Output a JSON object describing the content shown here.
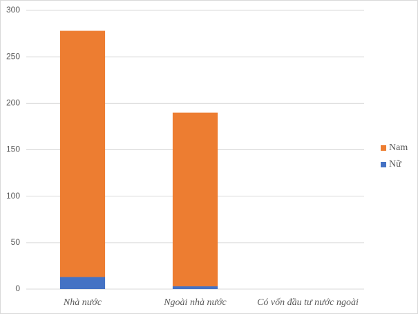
{
  "chart_data": {
    "type": "stacked-bar",
    "categories": [
      "Nhà nước",
      "Ngoài nhà nước",
      "Có vốn đầu tư nước ngoài"
    ],
    "series": [
      {
        "name": "Nữ",
        "color": "#4472c4",
        "values": [
          13,
          3,
          0
        ]
      },
      {
        "name": "Nam",
        "color": "#ed7d31",
        "values": [
          265,
          187,
          0
        ]
      }
    ],
    "ylim": [
      0,
      300
    ],
    "yticks": [
      0,
      50,
      100,
      150,
      200,
      250,
      300
    ],
    "grid": true,
    "legend": "right"
  }
}
